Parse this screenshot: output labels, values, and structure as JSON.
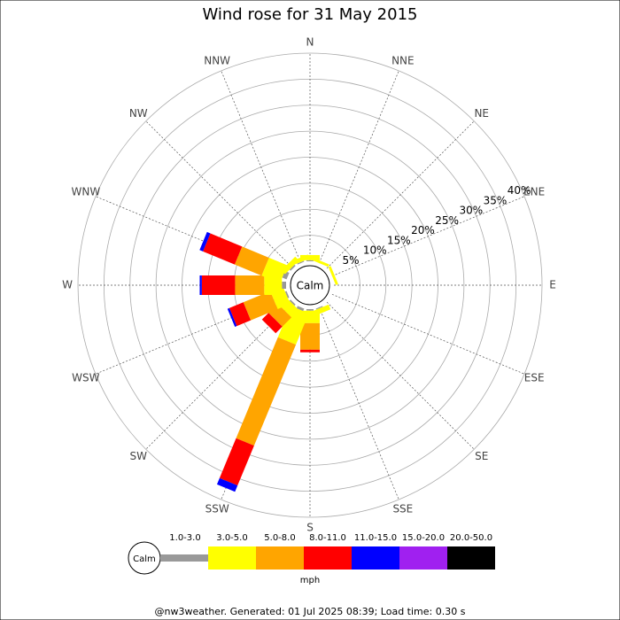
{
  "chart_data": {
    "type": "windrose",
    "title": "Wind rose for 31 May 2015",
    "categories": [
      "N",
      "NNE",
      "NE",
      "ENE",
      "E",
      "ESE",
      "SE",
      "SSE",
      "S",
      "SSW",
      "SW",
      "WSW",
      "W",
      "WNW",
      "NW",
      "NNW"
    ],
    "series": [
      {
        "name": "1.0-3.0",
        "color": "#999999",
        "values": [
          0.2,
          0,
          0,
          0,
          0,
          0,
          0,
          0.2,
          0.3,
          0.5,
          0.3,
          0.3,
          0.8,
          0.9,
          0.3,
          0.2
        ]
      },
      {
        "name": "3.0-5.0",
        "color": "#ffff00",
        "values": [
          1,
          0.5,
          0,
          0.5,
          0,
          0,
          0,
          1,
          2.4,
          6.5,
          2,
          2.6,
          3.4,
          3.8,
          1,
          0.8
        ]
      },
      {
        "name": "5.0-8.0",
        "color": "#ffa500",
        "values": [
          0,
          0,
          0,
          0,
          0,
          0,
          0,
          0,
          5.1,
          21,
          2.5,
          5.6,
          5.6,
          5.6,
          0,
          0
        ]
      },
      {
        "name": "8.0-11.0",
        "color": "#ff0000",
        "values": [
          0,
          0,
          0,
          0,
          0,
          0,
          0,
          0,
          0.5,
          8.3,
          1.8,
          2.9,
          6.4,
          6.6,
          0,
          0
        ]
      },
      {
        "name": "11.0-15.0",
        "color": "#0000ff",
        "values": [
          0,
          0,
          0,
          0,
          0,
          0,
          0,
          0,
          0,
          1.3,
          0,
          0.4,
          0.4,
          0.7,
          0,
          0
        ]
      },
      {
        "name": "15.0-20.0",
        "color": "#a020f0",
        "values": [
          0,
          0,
          0,
          0,
          0,
          0,
          0,
          0,
          0,
          0,
          0,
          0,
          0,
          0,
          0,
          0
        ]
      },
      {
        "name": "20.0-50.0",
        "color": "#000000",
        "values": [
          0,
          0,
          0,
          0,
          0,
          0,
          0,
          0,
          0,
          0,
          0,
          0,
          0,
          0,
          0,
          0
        ]
      }
    ],
    "rlim": [
      0,
      40
    ],
    "rticks": [
      {
        "value": 5,
        "label": "5%"
      },
      {
        "value": 10,
        "label": "10%"
      },
      {
        "value": 15,
        "label": "15%"
      },
      {
        "value": 20,
        "label": "20%"
      },
      {
        "value": 25,
        "label": "25%"
      },
      {
        "value": 30,
        "label": "30%"
      },
      {
        "value": 35,
        "label": "35%"
      },
      {
        "value": 40,
        "label": "40%"
      }
    ],
    "calm_label": "Calm",
    "units": "mph",
    "footer": "@nw3weather. Generated: 01 Jul 2025 08:39; Load time: 0.30 s"
  }
}
